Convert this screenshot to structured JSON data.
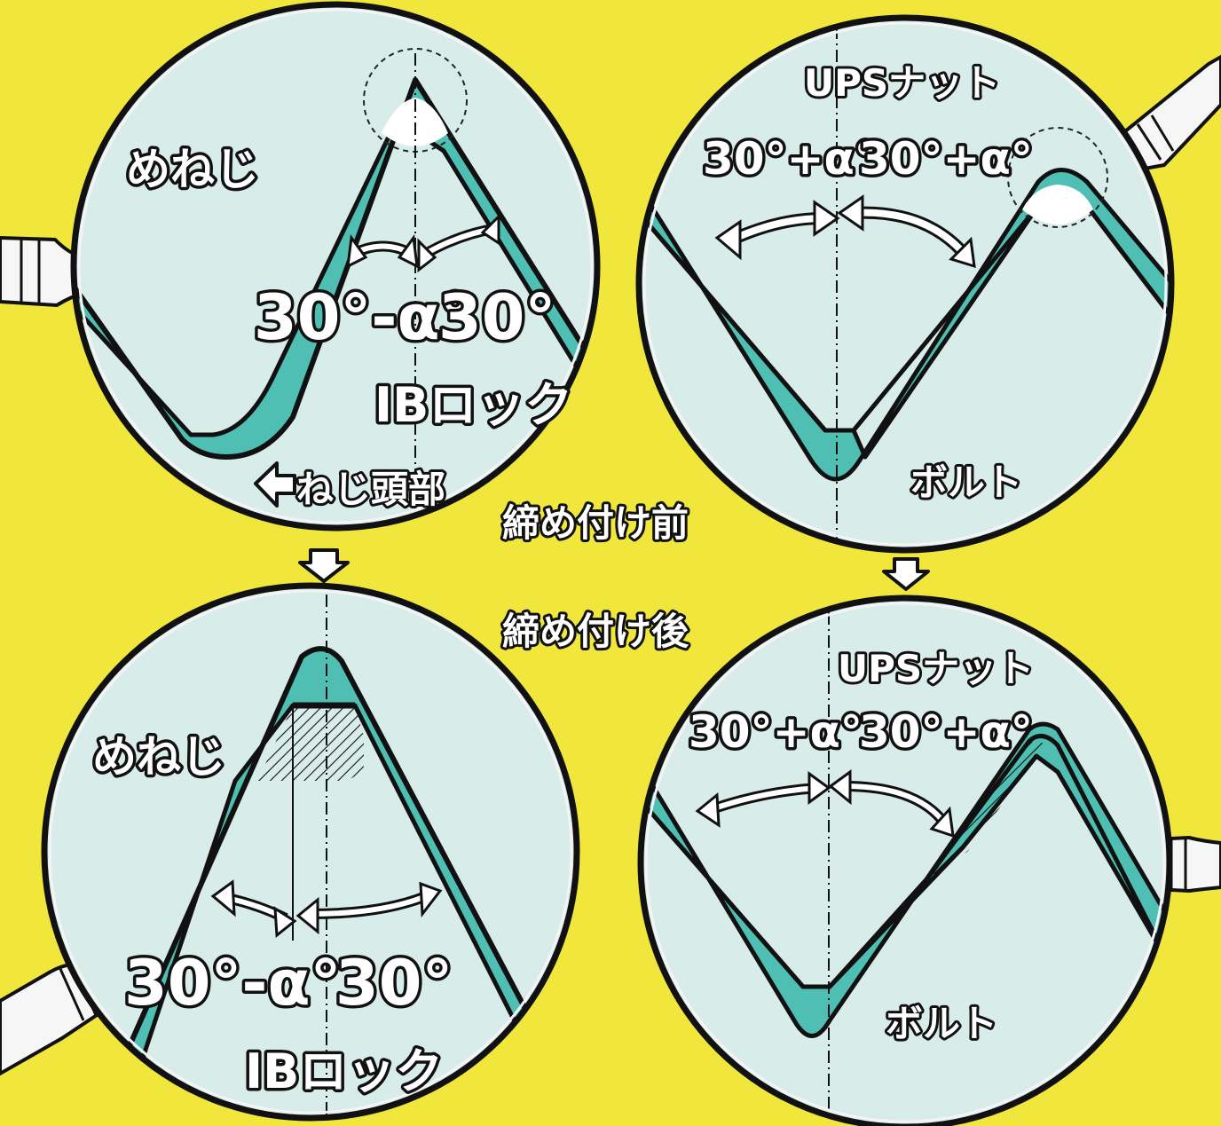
{
  "colors": {
    "background": "#f0e63c",
    "lens_fill": "#d8ecea",
    "thread_fill": "#4fbfb3",
    "outline": "#111111",
    "rim": "#f4f4f4"
  },
  "stages": {
    "before": "締め付け前",
    "after": "締め付け後"
  },
  "panels": {
    "ib_before": {
      "female_thread": "めねじ",
      "angle_left": "30°-α°",
      "angle_right": "30°",
      "product": "IBロック",
      "head_direction": "ねじ頭部"
    },
    "ups_before": {
      "nut": "UPSナット",
      "angle_left": "30°+α°",
      "angle_right": "30°+α°",
      "bolt": "ボルト"
    },
    "ib_after": {
      "female_thread": "めねじ",
      "angle_left": "30°-α°",
      "angle_right": "30°",
      "product": "IBロック"
    },
    "ups_after": {
      "nut": "UPSナット",
      "angle_left": "30°+α°",
      "angle_right": "30°+α°",
      "bolt": "ボルト"
    }
  },
  "icons": [
    "magnifier-handle-icon",
    "down-arrow-icon",
    "left-arrow-icon",
    "double-arrow-icon"
  ]
}
